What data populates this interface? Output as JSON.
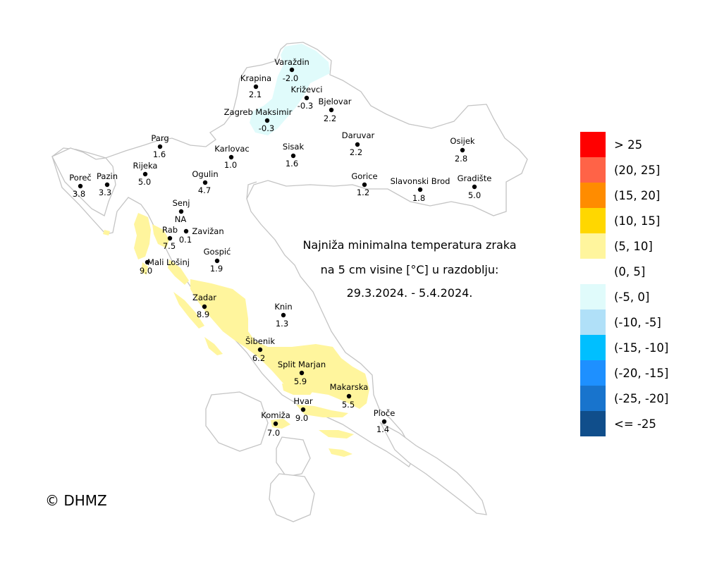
{
  "title": {
    "line1": "Najniža minimalna temperatura zraka",
    "line2": "na 5 cm visine [°C] u razdoblju:",
    "line3": "29.3.2024. - 5.4.2024."
  },
  "copyright": "© DHMZ",
  "colors": {
    "border": "#c4c4c4",
    "land": "#ffffff",
    "zone_warm": "#fff59d",
    "zone_cold": "#e0fbfb",
    "station_dot": "#000000"
  },
  "legend": [
    {
      "label": "> 25",
      "color": "#ff0000"
    },
    {
      "label": "(20, 25]",
      "color": "#ff6347"
    },
    {
      "label": "(15, 20]",
      "color": "#ff8c00"
    },
    {
      "label": "(10, 15]",
      "color": "#ffd700"
    },
    {
      "label": "(5, 10]",
      "color": "#fff59d"
    },
    {
      "label": "(0, 5]",
      "color": "#ffffff"
    },
    {
      "label": "(-5, 0]",
      "color": "#e0fbfb"
    },
    {
      "label": "(-10, -5]",
      "color": "#b0e0f8"
    },
    {
      "label": "(-15, -10]",
      "color": "#00bfff"
    },
    {
      "label": "(-20, -15]",
      "color": "#1e90ff"
    },
    {
      "label": "(-25, -20]",
      "color": "#1874cd"
    },
    {
      "label": "<= -25",
      "color": "#104e8b"
    }
  ],
  "stations": [
    {
      "name": "Varaždin",
      "value": "-2.0"
    },
    {
      "name": "Krapina",
      "value": "2.1"
    },
    {
      "name": "Križevci",
      "value": "-0.3"
    },
    {
      "name": "Bjelovar",
      "value": "2.2"
    },
    {
      "name": "Zagreb Maksimir",
      "value": "-0.3"
    },
    {
      "name": "Parg",
      "value": "1.6"
    },
    {
      "name": "Karlovac",
      "value": "1.0"
    },
    {
      "name": "Sisak",
      "value": "1.6"
    },
    {
      "name": "Daruvar",
      "value": "2.2"
    },
    {
      "name": "Osijek",
      "value": "2.8"
    },
    {
      "name": "Poreč",
      "value": "3.8"
    },
    {
      "name": "Pazin",
      "value": "3.3"
    },
    {
      "name": "Rijeka",
      "value": "5.0"
    },
    {
      "name": "Ogulin",
      "value": "4.7"
    },
    {
      "name": "Gorice",
      "value": "1.2"
    },
    {
      "name": "Slavonski Brod",
      "value": "1.8"
    },
    {
      "name": "Gradište",
      "value": "5.0"
    },
    {
      "name": "Senj",
      "value": "NA"
    },
    {
      "name": "Zavižan",
      "value": "0.1"
    },
    {
      "name": "Rab",
      "value": "7.5"
    },
    {
      "name": "Gospić",
      "value": "1.9"
    },
    {
      "name": "Mali Lošinj",
      "value": "9.0"
    },
    {
      "name": "Zadar",
      "value": "8.9"
    },
    {
      "name": "Knin",
      "value": "1.3"
    },
    {
      "name": "Šibenik",
      "value": "6.2"
    },
    {
      "name": "Split Marjan",
      "value": "5.9"
    },
    {
      "name": "Makarska",
      "value": "5.5"
    },
    {
      "name": "Hvar",
      "value": "9.0"
    },
    {
      "name": "Komiža",
      "value": "7.0"
    },
    {
      "name": "Ploče",
      "value": "1.4"
    }
  ]
}
